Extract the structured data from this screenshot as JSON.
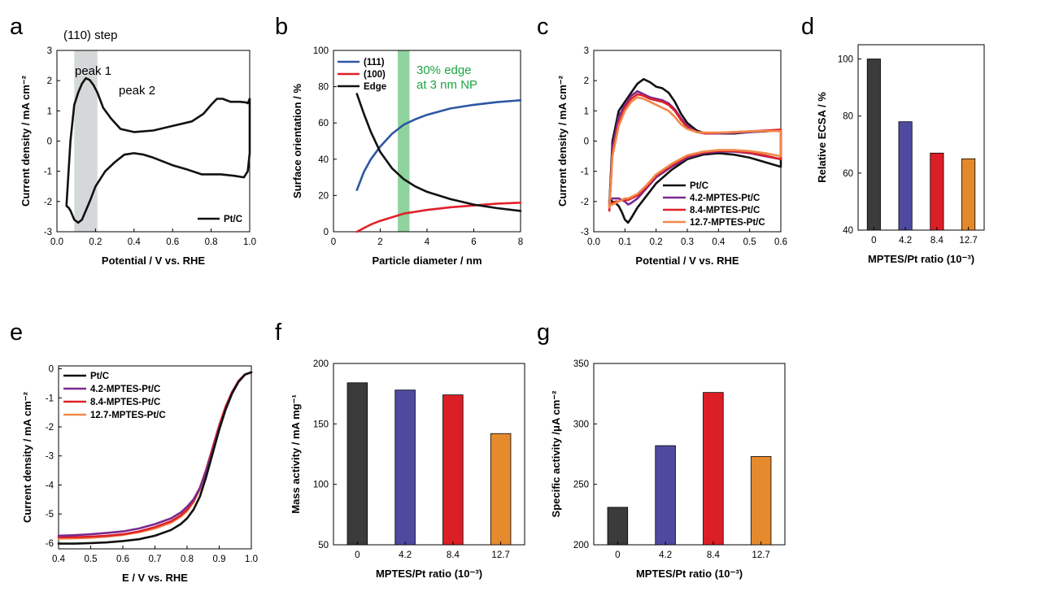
{
  "colors": {
    "black": "#111111",
    "purple": "#7a2a8e",
    "red": "#e0202a",
    "orange": "#f0894a",
    "blue111": "#2d57a3",
    "red100": "#e0202a",
    "green_band": "#8fd39e",
    "green_text": "#1aa642",
    "grey_band": "#d4d8d8",
    "bar_black": "#3b3b3b",
    "bar_purple": "#4f4aa0",
    "bar_red": "#dc1f26",
    "bar_orange": "#e3882b",
    "bar_orange2": "#e68a2e"
  },
  "chart_data": [
    {
      "panel": "a",
      "type": "line",
      "xlabel": "Potential / V vs. RHE",
      "ylabel": "Current density / mA cm⁻²",
      "xlim": [
        0.0,
        1.0
      ],
      "ylim": [
        -3,
        3
      ],
      "xticks": [
        "0.0",
        "0.2",
        "0.4",
        "0.6",
        "0.8",
        "1.0"
      ],
      "yticks": [
        "3",
        "2",
        "1",
        "0",
        "-1",
        "-2",
        "-3"
      ],
      "annotations": [
        "(110) step",
        "peak 1",
        "peak 2"
      ],
      "band": {
        "from": 0.09,
        "to": 0.21
      },
      "legend": [
        "Pt/C"
      ],
      "series": [
        {
          "name": "Pt/C",
          "color_key": "black",
          "x": [
            0.05,
            0.07,
            0.09,
            0.11,
            0.13,
            0.15,
            0.17,
            0.19,
            0.21,
            0.24,
            0.28,
            0.33,
            0.4,
            0.5,
            0.6,
            0.7,
            0.76,
            0.8,
            0.83,
            0.86,
            0.9,
            0.95,
            0.98,
            0.99,
            1.0,
            1.0,
            0.99,
            0.97,
            0.92,
            0.85,
            0.8,
            0.75,
            0.68,
            0.6,
            0.5,
            0.45,
            0.4,
            0.35,
            0.3,
            0.25,
            0.2,
            0.17,
            0.13,
            0.11,
            0.09,
            0.07,
            0.06,
            0.05,
            0.05
          ],
          "y": [
            -2.1,
            0.0,
            1.2,
            1.6,
            1.9,
            2.08,
            2.02,
            1.85,
            1.6,
            1.1,
            0.75,
            0.4,
            0.3,
            0.35,
            0.5,
            0.65,
            0.9,
            1.2,
            1.4,
            1.4,
            1.3,
            1.3,
            1.28,
            1.25,
            1.4,
            -0.4,
            -1.0,
            -1.2,
            -1.15,
            -1.1,
            -1.1,
            -1.1,
            -0.95,
            -0.8,
            -0.55,
            -0.45,
            -0.4,
            -0.45,
            -0.7,
            -1.0,
            -1.5,
            -2.0,
            -2.6,
            -2.7,
            -2.6,
            -2.3,
            -2.2,
            -2.15,
            -2.1
          ]
        }
      ]
    },
    {
      "panel": "b",
      "type": "line",
      "xlabel": "Particle diameter / nm",
      "ylabel": "Surface orientation / %",
      "xlim": [
        0,
        8
      ],
      "ylim": [
        0,
        100
      ],
      "xticks": [
        "0",
        "2",
        "4",
        "6",
        "8"
      ],
      "yticks": [
        "100",
        "80",
        "60",
        "40",
        "20",
        "0"
      ],
      "band": {
        "from": 2.75,
        "to": 3.25
      },
      "annotation": [
        "30% edge",
        "at 3 nm NP"
      ],
      "legend": [
        "(111)",
        "(100)",
        "Edge"
      ],
      "series": [
        {
          "name": "(111)",
          "color_key": "blue111",
          "x": [
            1.0,
            1.3,
            1.6,
            2.0,
            2.5,
            3.0,
            3.5,
            4.0,
            5.0,
            6.0,
            7.0,
            8.0
          ],
          "y": [
            23,
            33,
            40,
            47,
            54,
            59,
            62,
            64.5,
            68,
            70,
            71.5,
            72.5
          ]
        },
        {
          "name": "(100)",
          "color_key": "red100",
          "x": [
            1.0,
            1.3,
            1.6,
            2.0,
            2.5,
            3.0,
            3.5,
            4.0,
            5.0,
            6.0,
            7.0,
            8.0
          ],
          "y": [
            0,
            2,
            4,
            6,
            8,
            10,
            11,
            12,
            13.5,
            14.5,
            15.5,
            16
          ]
        },
        {
          "name": "Edge",
          "color_key": "black",
          "x": [
            1.0,
            1.3,
            1.6,
            2.0,
            2.5,
            3.0,
            3.5,
            4.0,
            5.0,
            6.0,
            7.0,
            8.0
          ],
          "y": [
            76,
            65,
            55,
            44,
            35,
            29,
            25,
            22,
            18,
            15,
            13,
            11.5
          ]
        }
      ]
    },
    {
      "panel": "c",
      "type": "line",
      "xlabel": "Potential / V vs. RHE",
      "ylabel": "Current density / mA cm⁻²",
      "xlim": [
        0.0,
        0.6
      ],
      "ylim": [
        -3,
        3
      ],
      "xticks": [
        "0.0",
        "0.1",
        "0.2",
        "0.3",
        "0.4",
        "0.5",
        "0.6"
      ],
      "yticks": [
        "3",
        "2",
        "1",
        "0",
        "-1",
        "-2",
        "-3"
      ],
      "legend": [
        "Pt/C",
        "4.2-MPTES-Pt/C",
        "8.4-MPTES-Pt/C",
        "12.7-MPTES-Pt/C"
      ],
      "series": [
        {
          "name": "Pt/C",
          "color_key": "black",
          "x": [
            0.05,
            0.06,
            0.08,
            0.1,
            0.12,
            0.14,
            0.16,
            0.18,
            0.2,
            0.22,
            0.24,
            0.26,
            0.28,
            0.3,
            0.33,
            0.36,
            0.4,
            0.45,
            0.5,
            0.55,
            0.6,
            0.6,
            0.55,
            0.5,
            0.45,
            0.4,
            0.35,
            0.3,
            0.25,
            0.2,
            0.17,
            0.14,
            0.12,
            0.11,
            0.1,
            0.09,
            0.08,
            0.07,
            0.06,
            0.05,
            0.05
          ],
          "y": [
            -2.1,
            0.0,
            1.0,
            1.3,
            1.6,
            1.9,
            2.05,
            1.95,
            1.8,
            1.75,
            1.6,
            1.3,
            0.9,
            0.6,
            0.35,
            0.25,
            0.25,
            0.25,
            0.3,
            0.32,
            0.35,
            -0.85,
            -0.7,
            -0.55,
            -0.45,
            -0.4,
            -0.45,
            -0.6,
            -0.95,
            -1.4,
            -1.8,
            -2.2,
            -2.55,
            -2.7,
            -2.6,
            -2.35,
            -2.15,
            -2.05,
            -2.0,
            -1.95,
            -2.1
          ]
        },
        {
          "name": "4.2-MPTES-Pt/C",
          "color_key": "purple",
          "x": [
            0.05,
            0.06,
            0.08,
            0.1,
            0.12,
            0.14,
            0.16,
            0.18,
            0.2,
            0.22,
            0.24,
            0.26,
            0.28,
            0.3,
            0.33,
            0.36,
            0.4,
            0.45,
            0.5,
            0.55,
            0.6,
            0.6,
            0.55,
            0.5,
            0.45,
            0.4,
            0.35,
            0.3,
            0.25,
            0.2,
            0.17,
            0.14,
            0.12,
            0.11,
            0.1,
            0.09,
            0.08,
            0.07,
            0.06,
            0.05,
            0.05
          ],
          "y": [
            -2.2,
            -0.2,
            0.8,
            1.2,
            1.5,
            1.65,
            1.55,
            1.45,
            1.4,
            1.35,
            1.25,
            1.05,
            0.75,
            0.5,
            0.3,
            0.25,
            0.25,
            0.27,
            0.3,
            0.33,
            0.35,
            -0.6,
            -0.5,
            -0.4,
            -0.35,
            -0.35,
            -0.4,
            -0.55,
            -0.85,
            -1.2,
            -1.55,
            -1.9,
            -2.05,
            -2.1,
            -2.0,
            -1.95,
            -1.9,
            -1.9,
            -1.9,
            -1.95,
            -2.2
          ]
        },
        {
          "name": "8.4-MPTES-Pt/C",
          "color_key": "red",
          "x": [
            0.05,
            0.06,
            0.08,
            0.1,
            0.12,
            0.14,
            0.16,
            0.18,
            0.2,
            0.22,
            0.24,
            0.26,
            0.28,
            0.3,
            0.33,
            0.36,
            0.4,
            0.45,
            0.5,
            0.55,
            0.6,
            0.6,
            0.55,
            0.5,
            0.45,
            0.4,
            0.35,
            0.3,
            0.25,
            0.2,
            0.17,
            0.14,
            0.12,
            0.11,
            0.1,
            0.09,
            0.08,
            0.07,
            0.06,
            0.05,
            0.05
          ],
          "y": [
            -2.3,
            -0.4,
            0.6,
            1.1,
            1.4,
            1.55,
            1.5,
            1.4,
            1.35,
            1.3,
            1.2,
            1.0,
            0.7,
            0.45,
            0.3,
            0.25,
            0.27,
            0.3,
            0.32,
            0.35,
            0.38,
            -0.6,
            -0.48,
            -0.38,
            -0.33,
            -0.32,
            -0.38,
            -0.5,
            -0.8,
            -1.15,
            -1.5,
            -1.8,
            -1.9,
            -1.95,
            -1.95,
            -1.95,
            -2.0,
            -2.0,
            -2.05,
            -2.1,
            -2.3
          ]
        },
        {
          "name": "12.7-MPTES-Pt/C",
          "color_key": "orange",
          "x": [
            0.05,
            0.06,
            0.08,
            0.1,
            0.12,
            0.14,
            0.16,
            0.18,
            0.2,
            0.22,
            0.24,
            0.26,
            0.28,
            0.3,
            0.33,
            0.36,
            0.4,
            0.45,
            0.5,
            0.55,
            0.6,
            0.6,
            0.55,
            0.5,
            0.45,
            0.4,
            0.35,
            0.3,
            0.25,
            0.2,
            0.17,
            0.14,
            0.12,
            0.11,
            0.1,
            0.09,
            0.08,
            0.07,
            0.06,
            0.05,
            0.05
          ],
          "y": [
            -2.2,
            -0.5,
            0.5,
            1.0,
            1.3,
            1.45,
            1.4,
            1.3,
            1.2,
            1.1,
            1.0,
            0.8,
            0.55,
            0.4,
            0.3,
            0.28,
            0.28,
            0.3,
            0.32,
            0.33,
            0.33,
            -0.5,
            -0.4,
            -0.33,
            -0.3,
            -0.3,
            -0.35,
            -0.47,
            -0.75,
            -1.1,
            -1.45,
            -1.75,
            -1.85,
            -1.9,
            -1.9,
            -1.95,
            -2.0,
            -2.05,
            -2.1,
            -2.15,
            -2.2
          ]
        }
      ]
    },
    {
      "panel": "d",
      "type": "bar",
      "xlabel": "MPTES/Pt ratio (10⁻³)",
      "ylabel": "Relative ECSA / %",
      "categories": [
        "0",
        "4.2",
        "8.4",
        "12.7"
      ],
      "values": [
        100,
        78,
        67,
        65
      ],
      "color_keys": [
        "bar_black",
        "bar_purple",
        "bar_red",
        "bar_orange"
      ],
      "ylim": [
        40,
        105
      ],
      "yticks": [
        "100",
        "80",
        "60",
        "40"
      ]
    },
    {
      "panel": "e",
      "type": "line",
      "xlabel": "E / V vs. RHE",
      "ylabel": "Current density / mA cm⁻²",
      "xlim": [
        0.4,
        1.0
      ],
      "ylim": [
        -6.2,
        0.1
      ],
      "xticks": [
        "0.4",
        "0.5",
        "0.6",
        "0.7",
        "0.8",
        "0.9",
        "1.0"
      ],
      "yticks": [
        "0",
        "-1",
        "-2",
        "-3",
        "-4",
        "-5",
        "-6"
      ],
      "legend": [
        "Pt/C",
        "4.2-MPTES-Pt/C",
        "8.4-MPTES-Pt/C",
        "12.7-MPTES-Pt/C"
      ],
      "series": [
        {
          "name": "Pt/C",
          "color_key": "black",
          "x": [
            0.4,
            0.45,
            0.5,
            0.55,
            0.6,
            0.65,
            0.7,
            0.75,
            0.78,
            0.8,
            0.82,
            0.84,
            0.86,
            0.88,
            0.9,
            0.92,
            0.94,
            0.96,
            0.98,
            1.0
          ],
          "y": [
            -6.02,
            -6.02,
            -6.0,
            -5.98,
            -5.93,
            -5.87,
            -5.75,
            -5.55,
            -5.35,
            -5.15,
            -4.85,
            -4.4,
            -3.7,
            -2.9,
            -2.1,
            -1.4,
            -0.85,
            -0.45,
            -0.2,
            -0.12
          ]
        },
        {
          "name": "4.2-MPTES-Pt/C",
          "color_key": "purple",
          "x": [
            0.4,
            0.45,
            0.5,
            0.55,
            0.6,
            0.65,
            0.7,
            0.75,
            0.78,
            0.8,
            0.82,
            0.84,
            0.86,
            0.88,
            0.9,
            0.92,
            0.94,
            0.96,
            0.98,
            1.0
          ],
          "y": [
            -5.75,
            -5.73,
            -5.7,
            -5.65,
            -5.6,
            -5.5,
            -5.35,
            -5.15,
            -4.95,
            -4.75,
            -4.5,
            -4.1,
            -3.5,
            -2.8,
            -2.05,
            -1.4,
            -0.85,
            -0.45,
            -0.2,
            -0.12
          ]
        },
        {
          "name": "8.4-MPTES-Pt/C",
          "color_key": "red",
          "x": [
            0.4,
            0.45,
            0.5,
            0.55,
            0.6,
            0.65,
            0.7,
            0.75,
            0.78,
            0.8,
            0.82,
            0.84,
            0.86,
            0.88,
            0.9,
            0.92,
            0.94,
            0.96,
            0.98,
            1.0
          ],
          "y": [
            -5.8,
            -5.8,
            -5.78,
            -5.75,
            -5.7,
            -5.6,
            -5.45,
            -5.25,
            -5.05,
            -4.85,
            -4.55,
            -4.1,
            -3.45,
            -2.7,
            -1.95,
            -1.3,
            -0.8,
            -0.42,
            -0.2,
            -0.12
          ]
        },
        {
          "name": "12.7-MPTES-Pt/C",
          "color_key": "orange",
          "x": [
            0.4,
            0.45,
            0.5,
            0.55,
            0.6,
            0.65,
            0.7,
            0.75,
            0.78,
            0.8,
            0.82,
            0.84,
            0.86,
            0.88,
            0.9,
            0.92,
            0.94,
            0.96,
            0.98,
            1.0
          ],
          "y": [
            -5.85,
            -5.84,
            -5.82,
            -5.78,
            -5.72,
            -5.63,
            -5.5,
            -5.3,
            -5.1,
            -4.9,
            -4.6,
            -4.15,
            -3.5,
            -2.75,
            -2.0,
            -1.35,
            -0.82,
            -0.43,
            -0.2,
            -0.12
          ]
        }
      ]
    },
    {
      "panel": "f",
      "type": "bar",
      "xlabel": "MPTES/Pt ratio (10⁻³)",
      "ylabel": "Mass activity / mA mg⁻¹",
      "categories": [
        "0",
        "4.2",
        "8.4",
        "12.7"
      ],
      "values": [
        184,
        178,
        174,
        142
      ],
      "color_keys": [
        "bar_black",
        "bar_purple",
        "bar_red",
        "bar_orange2"
      ],
      "ylim": [
        50,
        200
      ],
      "yticks": [
        "200",
        "150",
        "100",
        "50"
      ]
    },
    {
      "panel": "g",
      "type": "bar",
      "xlabel": "MPTES/Pt ratio (10⁻³)",
      "ylabel": "Specific activity /μA cm⁻²",
      "categories": [
        "0",
        "4.2",
        "8.4",
        "12.7"
      ],
      "values": [
        231,
        282,
        326,
        273
      ],
      "color_keys": [
        "bar_black",
        "bar_purple",
        "bar_red",
        "bar_orange2"
      ],
      "ylim": [
        200,
        350
      ],
      "yticks": [
        "350",
        "300",
        "250",
        "200"
      ]
    }
  ],
  "panel_letters": [
    "a",
    "b",
    "c",
    "d",
    "e",
    "f",
    "g"
  ]
}
